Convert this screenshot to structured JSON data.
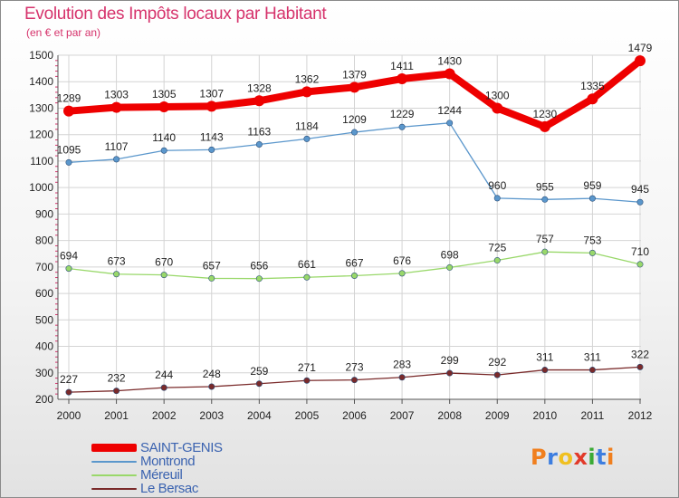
{
  "header": {
    "title": "Evolution des Impôts locaux par Habitant",
    "subtitle": "(en € et par an)"
  },
  "chart_data": {
    "type": "line",
    "title": "Evolution des Impôts locaux par Habitant",
    "subtitle": "(en € et par an)",
    "x": [
      "2000",
      "2001",
      "2002",
      "2003",
      "2004",
      "2005",
      "2006",
      "2007",
      "2008",
      "2009",
      "2010",
      "2011",
      "2012"
    ],
    "ylim": [
      200,
      1500
    ],
    "yticks": [
      200,
      300,
      400,
      500,
      600,
      700,
      800,
      900,
      1000,
      1100,
      1200,
      1300,
      1400,
      1500
    ],
    "grid": true,
    "legend_position": "bottom-left",
    "series": [
      {
        "name": "SAINT-GENIS",
        "color": "#ee0000",
        "values": [
          1289,
          1303,
          1305,
          1307,
          1328,
          1362,
          1379,
          1411,
          1430,
          1300,
          1230,
          1335,
          1479
        ]
      },
      {
        "name": "Montrond",
        "color": "#5b97cc",
        "values": [
          1095,
          1107,
          1140,
          1143,
          1163,
          1184,
          1209,
          1229,
          1244,
          960,
          955,
          959,
          945
        ]
      },
      {
        "name": "Méreuil",
        "color": "#99d86a",
        "values": [
          694,
          673,
          670,
          657,
          656,
          661,
          667,
          676,
          698,
          725,
          757,
          753,
          710
        ]
      },
      {
        "name": "Le Bersac",
        "color": "#7a2a2a",
        "values": [
          227,
          232,
          244,
          248,
          259,
          271,
          273,
          283,
          299,
          292,
          311,
          311,
          322
        ]
      }
    ]
  },
  "logo": {
    "text": "Proxiti",
    "colors": [
      "#f07f1e",
      "#3d7ee0",
      "#f0c020",
      "#e23a2a",
      "#3aaa35",
      "#3d7ee0",
      "#f07f1e"
    ]
  }
}
